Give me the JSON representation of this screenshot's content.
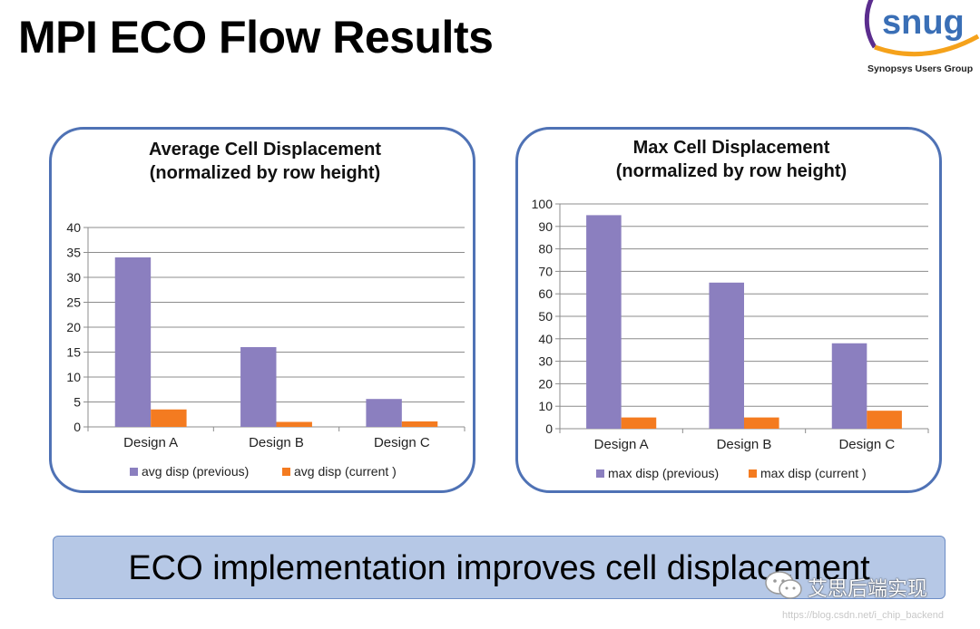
{
  "slide": {
    "title": "MPI ECO Flow Results",
    "summary": "ECO implementation improves cell displacement"
  },
  "logo": {
    "wordmark": "snug",
    "tagline": "Synopsys Users Group",
    "ring_color": "#5b2d8e",
    "arc_color": "#f5a21b",
    "text_color": "#3a6fb6"
  },
  "watermark": {
    "account": "艾思后端实现",
    "url": "https://blog.csdn.net/i_chip_backend"
  },
  "colors": {
    "previous": "#8b7fbf",
    "current": "#f47b20",
    "panel_border": "#4f72b5",
    "banner_fill": "#b6c8e6"
  },
  "chart_data": [
    {
      "type": "bar",
      "title": [
        "Average Cell Displacement",
        "(normalized by row height)"
      ],
      "categories": [
        "Design A",
        "Design B",
        "Design C"
      ],
      "series": [
        {
          "name": "avg disp (previous)",
          "values": [
            34,
            16,
            5.6
          ]
        },
        {
          "name": "avg disp (current )",
          "values": [
            3.5,
            1.0,
            1.1
          ]
        }
      ],
      "ylim": [
        0,
        40
      ],
      "yticks": [
        0,
        5,
        10,
        15,
        20,
        25,
        30,
        35,
        40
      ],
      "grid": true,
      "legend": "bottom"
    },
    {
      "type": "bar",
      "title": [
        "Max Cell Displacement",
        "(normalized by row height)"
      ],
      "categories": [
        "Design A",
        "Design B",
        "Design C"
      ],
      "series": [
        {
          "name": "max disp (previous)",
          "values": [
            95,
            65,
            38
          ]
        },
        {
          "name": "max disp (current )",
          "values": [
            5,
            5,
            8
          ]
        }
      ],
      "ylim": [
        0,
        100
      ],
      "yticks": [
        0,
        10,
        20,
        30,
        40,
        50,
        60,
        70,
        80,
        90,
        100
      ],
      "grid": true,
      "legend": "bottom"
    }
  ]
}
